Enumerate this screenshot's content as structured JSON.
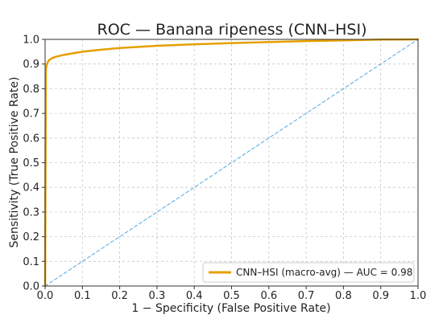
{
  "chart_data": {
    "type": "line",
    "title": "ROC — Banana ripeness (CNN–HSI)",
    "xlabel": "1 − Specificity (False Positive Rate)",
    "ylabel": "Sensitivity (True Positive Rate)",
    "xlim": [
      0,
      1
    ],
    "ylim": [
      0,
      1
    ],
    "xticks": [
      "0.0",
      "0.1",
      "0.2",
      "0.3",
      "0.4",
      "0.5",
      "0.6",
      "0.7",
      "0.8",
      "0.9",
      "1.0"
    ],
    "yticks": [
      "0.0",
      "0.1",
      "0.2",
      "0.3",
      "0.4",
      "0.5",
      "0.6",
      "0.7",
      "0.8",
      "0.9",
      "1.0"
    ],
    "grid": true,
    "legend_position": "bottom-right",
    "series": [
      {
        "name": "CNN–HSI (macro-avg) — AUC = 0.98",
        "color": "#E69F00",
        "style": "solid",
        "x": [
          0,
          0.002,
          0.005,
          0.01,
          0.02,
          0.03,
          0.05,
          0.08,
          0.1,
          0.15,
          0.2,
          0.3,
          0.4,
          0.5,
          0.6,
          0.7,
          0.8,
          0.9,
          1.0
        ],
        "y": [
          0,
          0.88,
          0.9,
          0.915,
          0.925,
          0.93,
          0.937,
          0.945,
          0.95,
          0.958,
          0.965,
          0.974,
          0.98,
          0.985,
          0.989,
          0.993,
          0.996,
          0.999,
          1.0
        ]
      },
      {
        "name": "",
        "color": "#4FA8E0",
        "style": "dashed",
        "x": [
          0,
          1
        ],
        "y": [
          0,
          1
        ]
      }
    ]
  }
}
